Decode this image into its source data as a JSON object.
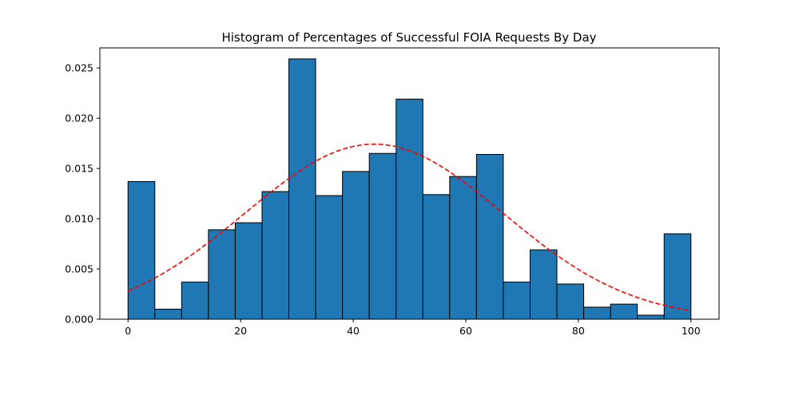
{
  "chart_data": {
    "type": "bar",
    "title": "Histogram of Percentages of Successful FOIA Requests By Day",
    "xlabel": "",
    "ylabel": "",
    "xlim": [
      -5,
      105
    ],
    "ylim": [
      0,
      0.027
    ],
    "bin_edges": [
      0,
      4.762,
      9.524,
      14.286,
      19.048,
      23.81,
      28.571,
      33.333,
      38.095,
      42.857,
      47.619,
      52.381,
      57.143,
      61.905,
      66.667,
      71.429,
      76.19,
      80.952,
      85.714,
      90.476,
      95.238,
      100
    ],
    "values": [
      0.0137,
      0.001,
      0.0037,
      0.0089,
      0.0096,
      0.0127,
      0.0259,
      0.0123,
      0.0147,
      0.0165,
      0.0219,
      0.0124,
      0.0142,
      0.0164,
      0.0037,
      0.0069,
      0.0035,
      0.0012,
      0.0015,
      0.0004,
      0.0085
    ],
    "x_ticks": [
      0,
      20,
      40,
      60,
      80,
      100
    ],
    "x_tick_labels": [
      "0",
      "20",
      "40",
      "60",
      "80",
      "100"
    ],
    "y_ticks": [
      0,
      0.005,
      0.01,
      0.015,
      0.02,
      0.025
    ],
    "y_tick_labels": [
      "0.000",
      "0.005",
      "0.010",
      "0.015",
      "0.020",
      "0.025"
    ],
    "fit_curve": {
      "type": "normal",
      "mean": 43.7,
      "std": 22.9,
      "range": [
        0,
        100
      ],
      "style": "dashed"
    },
    "grid": false,
    "colors": {
      "bar_fill": "#1f77b4",
      "bar_edge": "#000000",
      "curve": "#ff0000"
    }
  }
}
